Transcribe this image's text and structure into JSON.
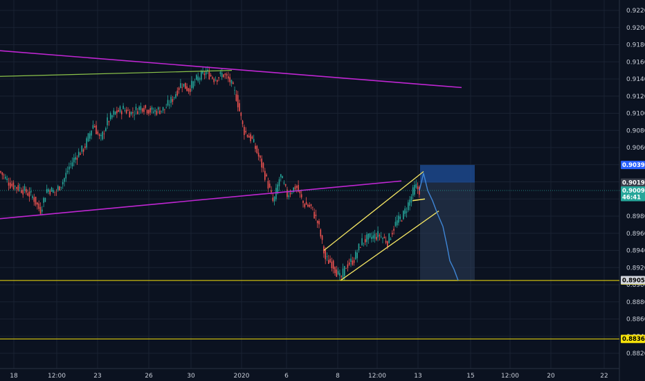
{
  "chart_data": {
    "type": "candlestick",
    "title": "",
    "colors": {
      "background": "#0b1220",
      "grid": "#1a2232",
      "up": "#26a69a",
      "down": "#ef5350",
      "trendline": "#c026d3",
      "channel": "#f5e663",
      "support": "#f5e10a",
      "resistance_green": "#8bc34a",
      "projection": "#3f86d6",
      "target_box": "#2a3a55",
      "stop_box": "#1f4f9a",
      "text": "#c9ced8"
    },
    "y_axis": {
      "min": 0.8812,
      "max": 0.9232,
      "tick_labels": [
        "0.92200",
        "0.92000",
        "0.91800",
        "0.91600",
        "0.91400",
        "0.91200",
        "0.91000",
        "0.90800",
        "0.90600",
        "0.90400",
        "0.90200",
        "0.90000",
        "0.89800",
        "0.89600",
        "0.89400",
        "0.89200",
        "0.89000",
        "0.88800",
        "0.88600",
        "0.88400",
        "0.88200"
      ],
      "tick_values": [
        0.922,
        0.92,
        0.918,
        0.916,
        0.914,
        0.912,
        0.91,
        0.908,
        0.906,
        0.904,
        0.902,
        0.9,
        0.898,
        0.896,
        0.894,
        0.892,
        0.89,
        0.888,
        0.886,
        0.884,
        0.882
      ]
    },
    "x_axis": {
      "tick_labels": [
        "18",
        "12:00",
        "23",
        "26",
        "30",
        "2020",
        "6",
        "8",
        "12:00",
        "13",
        "15",
        "12:00",
        "20",
        "22"
      ],
      "tick_positions": [
        20,
        82,
        141,
        215,
        276,
        349,
        414,
        488,
        545,
        604,
        680,
        737,
        796,
        873
      ]
    },
    "price_labels": [
      {
        "value": 0.90397,
        "text": "0.90397",
        "bg": "#2962ff",
        "fg": "#ffffff"
      },
      {
        "value": 0.90191,
        "text": "0.90191",
        "bg": "#3a3f4b",
        "fg": "#ffffff"
      },
      {
        "value": 0.90099,
        "text": "0.90099",
        "bg": "#26a69a",
        "fg": "#ffffff"
      },
      {
        "value": 0.90022,
        "text": "46:41",
        "bg": "#26a69a",
        "fg": "#ffffff"
      },
      {
        "value": 0.8905,
        "text": "0.89050",
        "bg": "#f5e10a",
        "fg": "#000000"
      },
      {
        "value": 0.89054,
        "text": "0.89054",
        "bg": "#d0d3da",
        "fg": "#000000"
      },
      {
        "value": 0.88368,
        "text": "0.88368",
        "bg": "#f5e10a",
        "fg": "#000000"
      }
    ],
    "horizontal_lines": [
      {
        "value": 0.8905,
        "color": "#f5e10a"
      },
      {
        "value": 0.88368,
        "color": "#f5e10a"
      }
    ],
    "current_price": 0.90099,
    "price_path": [
      [
        0,
        0.9032
      ],
      [
        15,
        0.9017
      ],
      [
        35,
        0.901
      ],
      [
        48,
        0.9002
      ],
      [
        58,
        0.8986
      ],
      [
        68,
        0.9012
      ],
      [
        80,
        0.9008
      ],
      [
        92,
        0.9022
      ],
      [
        100,
        0.9038
      ],
      [
        110,
        0.905
      ],
      [
        122,
        0.906
      ],
      [
        135,
        0.9088
      ],
      [
        145,
        0.9068
      ],
      [
        155,
        0.909
      ],
      [
        165,
        0.91
      ],
      [
        178,
        0.9105
      ],
      [
        190,
        0.91
      ],
      [
        205,
        0.9108
      ],
      [
        220,
        0.9102
      ],
      [
        238,
        0.9105
      ],
      [
        250,
        0.9118
      ],
      [
        262,
        0.9135
      ],
      [
        272,
        0.9128
      ],
      [
        285,
        0.914
      ],
      [
        298,
        0.9148
      ],
      [
        310,
        0.914
      ],
      [
        322,
        0.9146
      ],
      [
        332,
        0.9138
      ],
      [
        342,
        0.9118
      ],
      [
        352,
        0.908
      ],
      [
        365,
        0.9068
      ],
      [
        378,
        0.904
      ],
      [
        388,
        0.9015
      ],
      [
        395,
        0.8995
      ],
      [
        405,
        0.9028
      ],
      [
        415,
        0.9005
      ],
      [
        428,
        0.9015
      ],
      [
        438,
        0.8995
      ],
      [
        450,
        0.899
      ],
      [
        460,
        0.897
      ],
      [
        470,
        0.893
      ],
      [
        480,
        0.8925
      ],
      [
        492,
        0.8906
      ],
      [
        500,
        0.8922
      ],
      [
        512,
        0.893
      ],
      [
        522,
        0.895
      ],
      [
        535,
        0.8955
      ],
      [
        548,
        0.8958
      ],
      [
        560,
        0.895
      ],
      [
        572,
        0.8972
      ],
      [
        582,
        0.898
      ],
      [
        592,
        0.8998
      ],
      [
        600,
        0.9015
      ],
      [
        606,
        0.901
      ]
    ],
    "projection_path": [
      [
        606,
        0.901
      ],
      [
        612,
        0.903
      ],
      [
        618,
        0.901
      ],
      [
        625,
        0.8998
      ],
      [
        632,
        0.8983
      ],
      [
        640,
        0.8968
      ],
      [
        646,
        0.8945
      ],
      [
        650,
        0.8928
      ],
      [
        656,
        0.8918
      ],
      [
        662,
        0.8905
      ]
    ],
    "annotations": {
      "magenta_upper": [
        [
          0,
          0.9173
        ],
        [
          667,
          0.913
        ]
      ],
      "magenta_lower": [
        [
          0,
          0.8977
        ],
        [
          580,
          0.9021
        ]
      ],
      "green_line": [
        [
          0,
          0.9143
        ],
        [
          335,
          0.915
        ]
      ],
      "channel_upper": [
        [
          468,
          0.894
        ],
        [
          612,
          0.9032
        ]
      ],
      "channel_lower": [
        [
          492,
          0.8905
        ],
        [
          634,
          0.8986
        ]
      ],
      "small_segment": [
        [
          596,
          0.8998
        ],
        [
          614,
          0.9
        ]
      ],
      "baseline_segment": [
        [
          492,
          0.8905
        ],
        [
          662,
          0.8905
        ]
      ],
      "stop_box": {
        "x0": 607,
        "x1": 686,
        "y_top": 0.90397,
        "y_bottom": 0.90191
      },
      "target_box": {
        "x0": 607,
        "x1": 686,
        "y_top": 0.90191,
        "y_bottom": 0.8905
      }
    }
  }
}
